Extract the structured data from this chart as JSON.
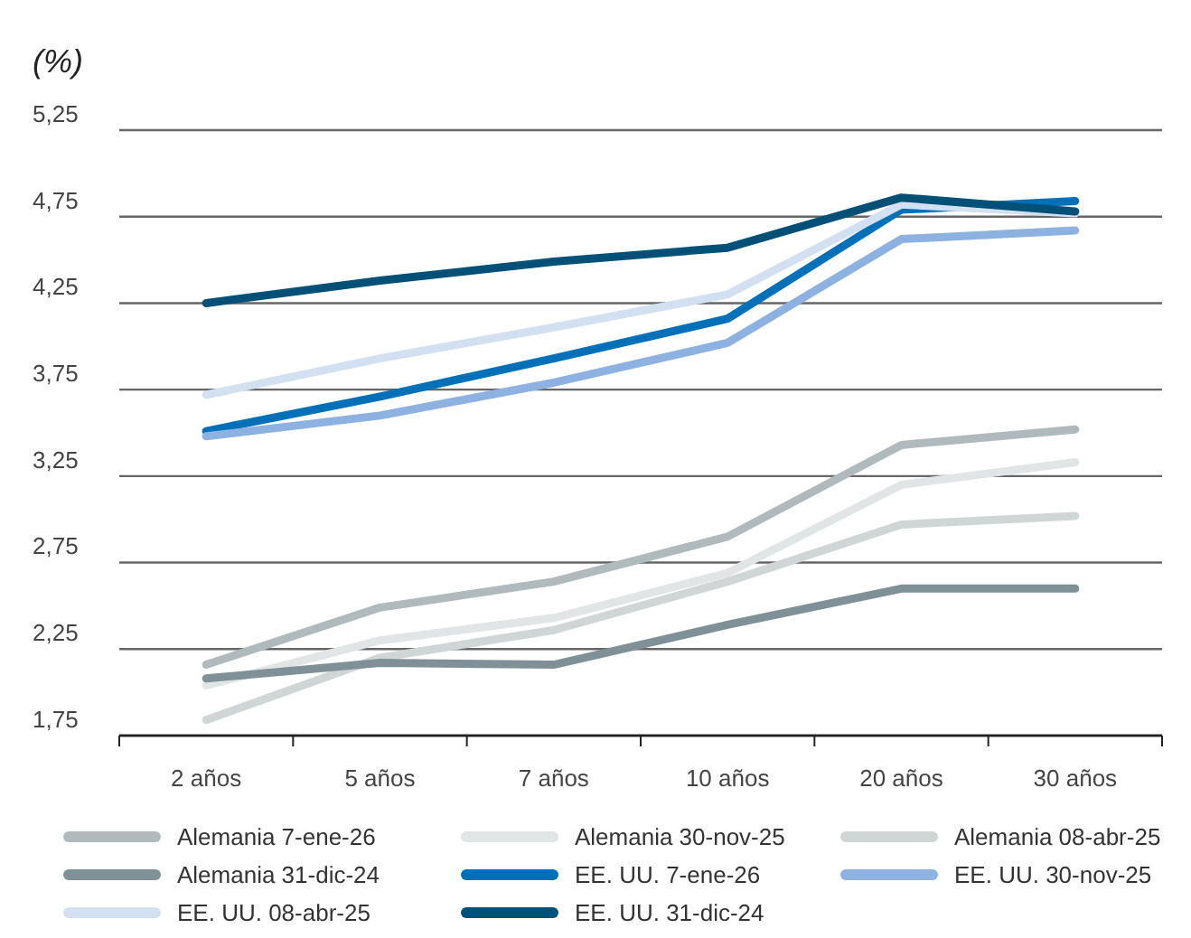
{
  "chart_data": {
    "type": "line",
    "ylabel": "(%)",
    "categories": [
      "2 años",
      "5 años",
      "7 años",
      "10 años",
      "20 años",
      "30 años"
    ],
    "ylim": [
      1.75,
      5.25
    ],
    "yticks": [
      {
        "value": 1.75,
        "label": "1,75"
      },
      {
        "value": 2.25,
        "label": "2,25"
      },
      {
        "value": 2.75,
        "label": "2,75"
      },
      {
        "value": 3.25,
        "label": "3,25"
      },
      {
        "value": 3.75,
        "label": "3,75"
      },
      {
        "value": 4.25,
        "label": "4,25"
      },
      {
        "value": 4.75,
        "label": "4,75"
      },
      {
        "value": 5.25,
        "label": "5,25"
      }
    ],
    "grid": "y",
    "legend": "bottom",
    "marker": "none",
    "line_style": "solid",
    "series": [
      {
        "name": "Alemania 7-ene-26",
        "color": "#b0babd",
        "values": [
          2.16,
          2.49,
          2.64,
          2.9,
          3.43,
          3.52
        ]
      },
      {
        "name": "Alemania 30-nov-25",
        "color": "#e1e5e6",
        "values": [
          2.04,
          2.3,
          2.43,
          2.69,
          3.2,
          3.33
        ]
      },
      {
        "name": "Alemania 08-abr-25",
        "color": "#d0d6d6",
        "values": [
          1.84,
          2.2,
          2.36,
          2.64,
          2.97,
          3.02
        ]
      },
      {
        "name": "Alemania 31-dic-24",
        "color": "#7f9096",
        "values": [
          2.08,
          2.17,
          2.16,
          2.39,
          2.6,
          2.6
        ]
      },
      {
        "name": "EE. UU. 7-ene-26",
        "color": "#0070b8",
        "values": [
          3.51,
          3.71,
          3.93,
          4.16,
          4.79,
          4.84
        ]
      },
      {
        "name": "EE. UU. 30-nov-25",
        "color": "#8db1e0",
        "values": [
          3.48,
          3.6,
          3.79,
          4.02,
          4.62,
          4.67
        ]
      },
      {
        "name": "EE. UU. 08-abr-25",
        "color": "#d2e0f2",
        "values": [
          3.72,
          3.93,
          4.11,
          4.3,
          4.82,
          4.77
        ]
      },
      {
        "name": "EE. UU. 31-dic-24",
        "color": "#005078",
        "values": [
          4.25,
          4.38,
          4.49,
          4.57,
          4.86,
          4.78
        ]
      }
    ]
  }
}
